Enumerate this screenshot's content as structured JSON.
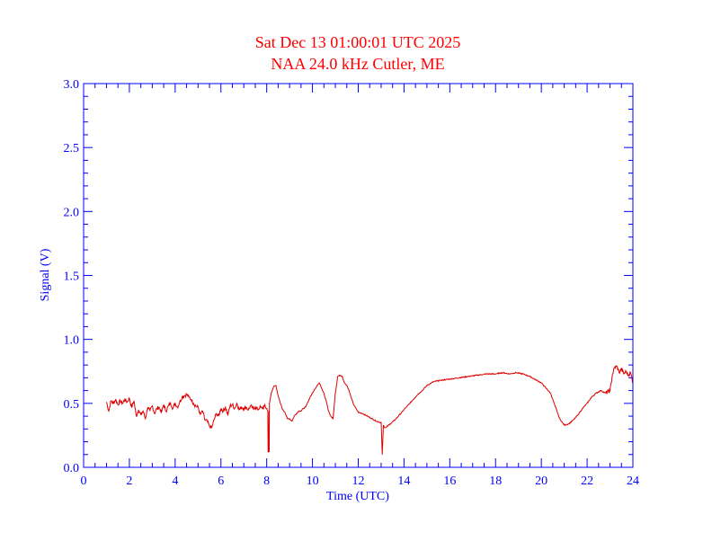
{
  "chart_data": {
    "type": "line",
    "title": "Sat Dec 13 01:00:01 UTC 2025",
    "subtitle": "NAA 24.0 kHz Cutler, ME",
    "xlabel": "Time (UTC)",
    "ylabel": "Signal (V)",
    "xlim": [
      0,
      24
    ],
    "ylim": [
      0,
      3.0
    ],
    "x_ticks": [
      "0",
      "2",
      "4",
      "6",
      "8",
      "10",
      "12",
      "14",
      "16",
      "18",
      "20",
      "22",
      "24"
    ],
    "y_ticks": [
      "0.0",
      "0.5",
      "1.0",
      "1.5",
      "2.0",
      "2.5",
      "3.0"
    ],
    "grid": false,
    "colors": {
      "axis": "#0000ff",
      "title": "#ff0000",
      "series": "#dd0000"
    },
    "series": [
      {
        "x": [
          1.0,
          1.1,
          1.2,
          1.3,
          1.4,
          1.5,
          1.6,
          1.7,
          1.8,
          1.9,
          2.0,
          2.1,
          2.2,
          2.3,
          2.4,
          2.5,
          2.6,
          2.7,
          2.8,
          2.9,
          3.0,
          3.1,
          3.2,
          3.3,
          3.4,
          3.5,
          3.6,
          3.7,
          3.8,
          3.9,
          4.0,
          4.1,
          4.2,
          4.3,
          4.4,
          4.5,
          4.6,
          4.7,
          4.8,
          4.9,
          5.0,
          5.1,
          5.2,
          5.3,
          5.4,
          5.5,
          5.6,
          5.7,
          5.8,
          5.9,
          6.0,
          6.1,
          6.2,
          6.3,
          6.4,
          6.5,
          6.6,
          6.7,
          6.8,
          6.9,
          7.0,
          7.1,
          7.2,
          7.3,
          7.4,
          7.5,
          7.6,
          7.7,
          7.8,
          7.9,
          8.0,
          8.05,
          8.06,
          8.08,
          8.1,
          8.11,
          8.12,
          8.2,
          8.3,
          8.4,
          8.5,
          8.6,
          8.7,
          8.8,
          8.9,
          9.0,
          9.1,
          9.2,
          9.3,
          9.4,
          9.5,
          9.6,
          9.7,
          9.8,
          9.9,
          10.0,
          10.1,
          10.2,
          10.3,
          10.4,
          10.5,
          10.6,
          10.7,
          10.8,
          10.9,
          11.0,
          11.1,
          11.2,
          11.3,
          11.4,
          11.5,
          11.6,
          11.7,
          11.8,
          11.9,
          12.0,
          12.2,
          12.4,
          12.6,
          12.8,
          13.0,
          13.05,
          13.1,
          13.15,
          13.2,
          13.4,
          13.6,
          13.8,
          14.0,
          14.2,
          14.4,
          14.6,
          14.8,
          15.0,
          15.3,
          15.6,
          16.0,
          16.4,
          16.8,
          17.2,
          17.6,
          18.0,
          18.3,
          18.6,
          18.9,
          19.2,
          19.5,
          19.8,
          20.0,
          20.2,
          20.4,
          20.6,
          20.8,
          21.0,
          21.2,
          21.4,
          21.6,
          21.8,
          22.0,
          22.2,
          22.4,
          22.6,
          22.8,
          23.0,
          23.1,
          23.2,
          23.3,
          23.4,
          23.5,
          23.6,
          23.7,
          23.8,
          23.9,
          24.0
        ],
        "values": [
          0.51,
          0.44,
          0.52,
          0.5,
          0.53,
          0.49,
          0.52,
          0.5,
          0.53,
          0.51,
          0.54,
          0.47,
          0.52,
          0.4,
          0.45,
          0.41,
          0.44,
          0.38,
          0.47,
          0.44,
          0.48,
          0.42,
          0.46,
          0.47,
          0.43,
          0.49,
          0.44,
          0.48,
          0.5,
          0.46,
          0.5,
          0.47,
          0.51,
          0.55,
          0.56,
          0.57,
          0.55,
          0.53,
          0.5,
          0.48,
          0.47,
          0.41,
          0.44,
          0.37,
          0.36,
          0.32,
          0.31,
          0.37,
          0.42,
          0.4,
          0.46,
          0.44,
          0.47,
          0.41,
          0.48,
          0.49,
          0.46,
          0.5,
          0.45,
          0.47,
          0.46,
          0.47,
          0.45,
          0.48,
          0.46,
          0.47,
          0.45,
          0.47,
          0.46,
          0.48,
          0.46,
          0.44,
          0.12,
          0.12,
          0.44,
          0.12,
          0.5,
          0.58,
          0.63,
          0.64,
          0.56,
          0.5,
          0.45,
          0.43,
          0.38,
          0.38,
          0.36,
          0.4,
          0.42,
          0.44,
          0.44,
          0.46,
          0.47,
          0.51,
          0.55,
          0.58,
          0.61,
          0.64,
          0.66,
          0.62,
          0.58,
          0.52,
          0.44,
          0.4,
          0.38,
          0.58,
          0.71,
          0.72,
          0.71,
          0.66,
          0.64,
          0.6,
          0.54,
          0.49,
          0.46,
          0.43,
          0.42,
          0.4,
          0.38,
          0.36,
          0.35,
          0.1,
          0.33,
          0.31,
          0.31,
          0.34,
          0.37,
          0.41,
          0.45,
          0.49,
          0.53,
          0.57,
          0.6,
          0.64,
          0.67,
          0.68,
          0.69,
          0.7,
          0.71,
          0.72,
          0.73,
          0.73,
          0.74,
          0.73,
          0.74,
          0.73,
          0.71,
          0.68,
          0.66,
          0.62,
          0.58,
          0.48,
          0.38,
          0.33,
          0.34,
          0.37,
          0.41,
          0.46,
          0.5,
          0.55,
          0.58,
          0.6,
          0.58,
          0.6,
          0.72,
          0.78,
          0.79,
          0.74,
          0.77,
          0.73,
          0.75,
          0.72,
          0.74,
          0.66
        ]
      }
    ]
  }
}
